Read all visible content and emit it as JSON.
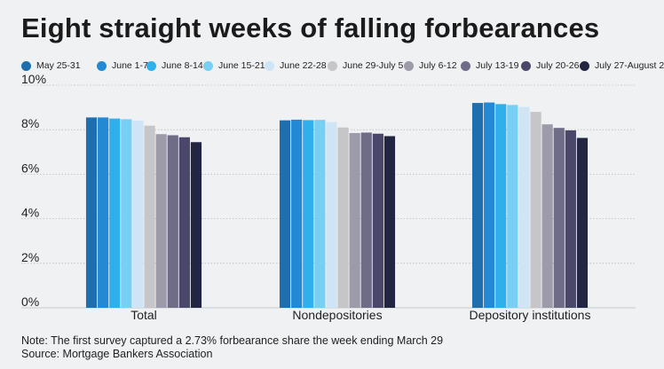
{
  "title": "Eight straight weeks of falling forbearances",
  "note": "Note: The first survey captured a 2.73% forbearance share the week ending March 29",
  "source": "Source: Mortgage Bankers Association",
  "chart_data": {
    "type": "bar",
    "title": "Eight straight weeks of falling forbearances",
    "xlabel": "",
    "ylabel": "",
    "ylim": [
      0,
      10
    ],
    "yticks": [
      0,
      2,
      4,
      6,
      8,
      10
    ],
    "ytick_labels": [
      "0%",
      "2%",
      "4%",
      "6%",
      "8%",
      "10%"
    ],
    "grid": true,
    "legend": "top",
    "categories": [
      "Total",
      "Nondepositories",
      "Depository institutions"
    ],
    "series": [
      {
        "name": "May 25-31",
        "color": "#1f6fae",
        "values": [
          8.55,
          8.42,
          9.2
        ]
      },
      {
        "name": "June 1-7",
        "color": "#2489d4",
        "values": [
          8.55,
          8.45,
          9.22
        ]
      },
      {
        "name": "June 8-14",
        "color": "#2fb0ec",
        "values": [
          8.5,
          8.43,
          9.15
        ]
      },
      {
        "name": "June 15-21",
        "color": "#77cff4",
        "values": [
          8.47,
          8.44,
          9.11
        ]
      },
      {
        "name": "June 22-28",
        "color": "#cfe5f6",
        "values": [
          8.41,
          8.34,
          9.02
        ]
      },
      {
        "name": "June 29-July 5",
        "color": "#c6c6c8",
        "values": [
          8.18,
          8.1,
          8.8
        ]
      },
      {
        "name": "July 6-12",
        "color": "#9d9baa",
        "values": [
          7.8,
          7.85,
          8.24
        ]
      },
      {
        "name": "July 13-19",
        "color": "#6f6c88",
        "values": [
          7.75,
          7.87,
          8.08
        ]
      },
      {
        "name": "July 20-26",
        "color": "#4a476a",
        "values": [
          7.66,
          7.82,
          7.97
        ]
      },
      {
        "name": "July 27-August 2",
        "color": "#232643",
        "values": [
          7.44,
          7.71,
          7.63
        ]
      }
    ]
  }
}
